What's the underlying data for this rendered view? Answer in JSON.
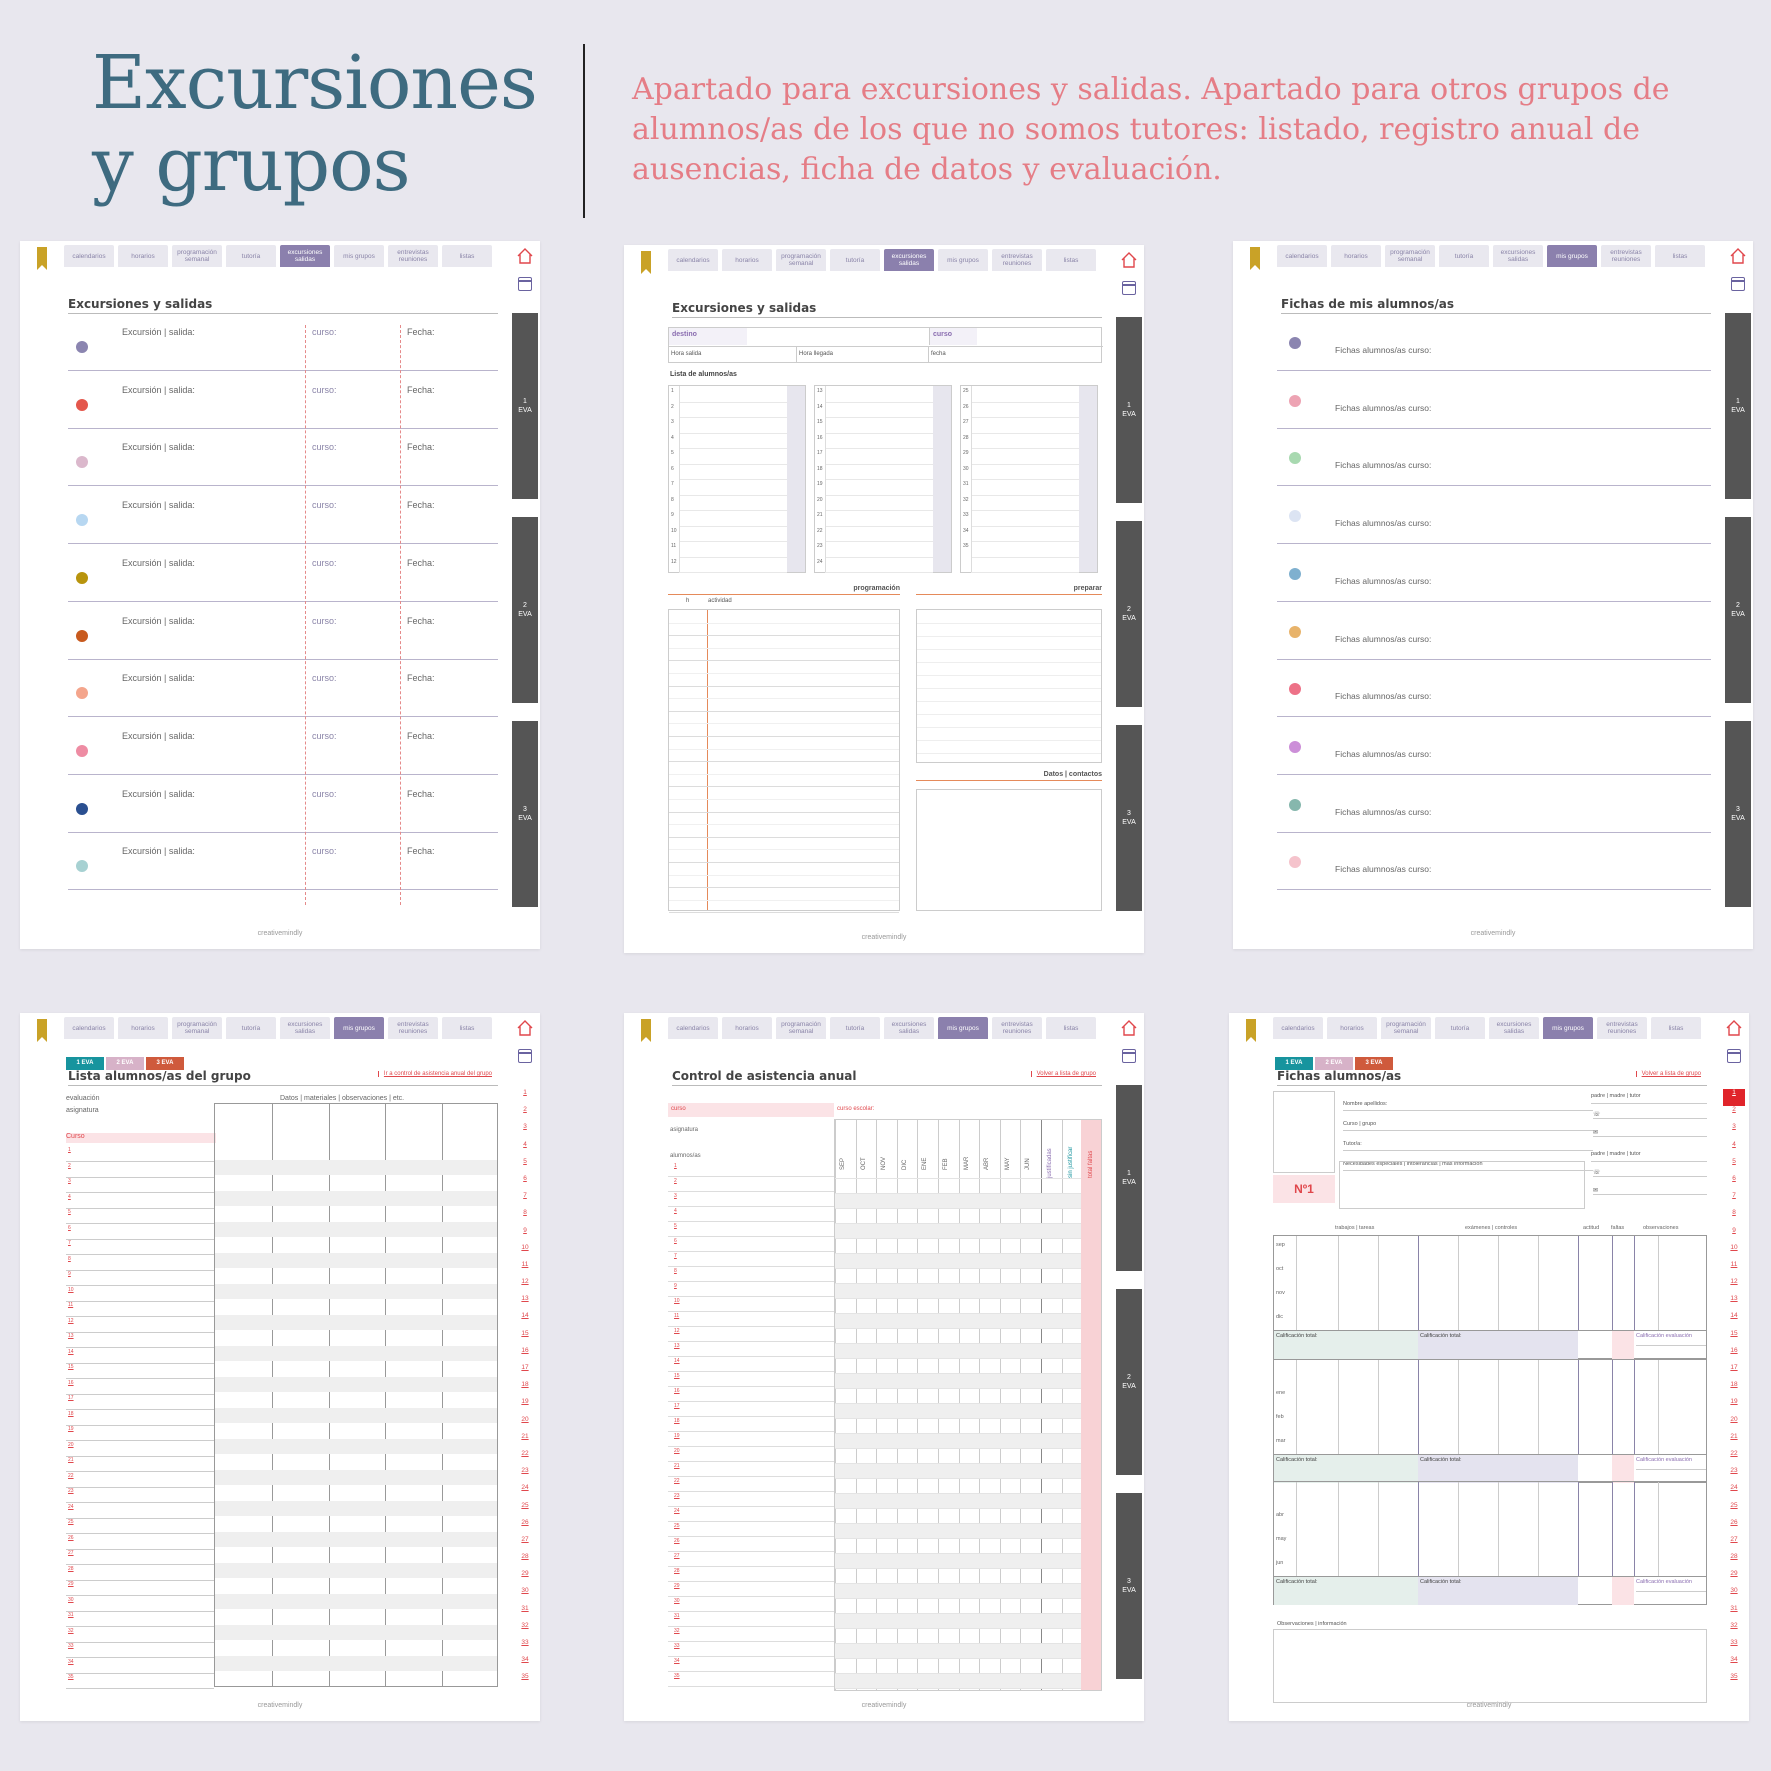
{
  "header": {
    "title": "Excursiones y grupos",
    "subtitle": "Apartado para excursiones y salidas. Apartado para otros grupos de alumnos/as de los que no somos tutores: listado, registro anual de ausencias, ficha de datos y evaluación."
  },
  "nav": {
    "tabs": [
      "calendarios",
      "horarios",
      "programación semanal",
      "tutoría",
      "excursiones salidas",
      "mis grupos",
      "entrevistas reuniones",
      "listas"
    ]
  },
  "eva": [
    "1\nEVA",
    "2\nEVA",
    "3\nEVA"
  ],
  "eva_badges": [
    "1 EVA",
    "2 EVA",
    "3 EVA"
  ],
  "footer": "creativemindly",
  "p1": {
    "title": "Excursiones y salidas",
    "labels": {
      "exc": "Excursión | salida:",
      "curso": "curso:",
      "fecha": "Fecha:"
    },
    "dot_colors": [
      "#8b85b0",
      "#e4574c",
      "#dbb8cc",
      "#b7d7f1",
      "#b8940d",
      "#c85a1e",
      "#f4a58c",
      "#ee8ca3",
      "#2a4f90",
      "#a7d1d2"
    ]
  },
  "p2": {
    "title": "Excursiones y salidas",
    "destino": "destino",
    "curso": "curso",
    "hora_salida": "Hora salida",
    "hora_llegada": "Hora llegada",
    "fecha": "fecha",
    "lista": "Lista de alumnos/as",
    "programacion": "programación",
    "h": "h",
    "actividad": "actividad",
    "preparar": "preparar",
    "datos": "Datos | contactos"
  },
  "p3": {
    "title": "Fichas de mis alumnos/as",
    "label": "Fichas alumnos/as curso:",
    "dot_colors": [
      "#8b85b0",
      "#eda3b3",
      "#a8d9b0",
      "#dce4f3",
      "#7fb0cf",
      "#e8b36a",
      "#ed7187",
      "#cc8fd8",
      "#86b7ad",
      "#f5c3cc"
    ]
  },
  "p4": {
    "title": "Lista alumnos/as del grupo",
    "link": "Ir a control de asistencia anual del grupo",
    "evaluacion": "evaluación",
    "asignatura": "asignatura",
    "curso": "Curso",
    "datos": "Datos | materiales | observaciones | etc."
  },
  "p5": {
    "title": "Control de asistencia anual",
    "link": "Volver a lista de grupo",
    "curso": "curso",
    "curso_escolar": "curso escolar:",
    "asignatura": "asignatura",
    "alumnos": "alumnos/as",
    "months": [
      "SEP",
      "OCT",
      "NOV",
      "DIC",
      "ENE",
      "FEB",
      "MAR",
      "ABR",
      "MAY",
      "JUN"
    ],
    "cols": [
      "justificadas",
      "sin justificar",
      "total faltas"
    ]
  },
  "p6": {
    "title": "Fichas alumnos/as",
    "link": "Volver a lista de grupo",
    "num": "Nº1",
    "fields": [
      "Nombre apellidos:",
      "Curso | grupo",
      "Tutor/a:",
      "Necesidades especiales | intolerancias | más información"
    ],
    "parents": "padre | madre | tutor",
    "heads": [
      "trabajos | tareas",
      "exámenes | controles",
      "actitud",
      "faltas",
      "observaciones"
    ],
    "months1": [
      "sep",
      "oct",
      "nov",
      "dic"
    ],
    "months2": [
      "ene",
      "feb",
      "mar"
    ],
    "months3": [
      "abr",
      "may",
      "jun"
    ],
    "calif": "Calificación total:",
    "calif_eval": "Calificación evaluación",
    "obs": "Observaciones | información"
  }
}
